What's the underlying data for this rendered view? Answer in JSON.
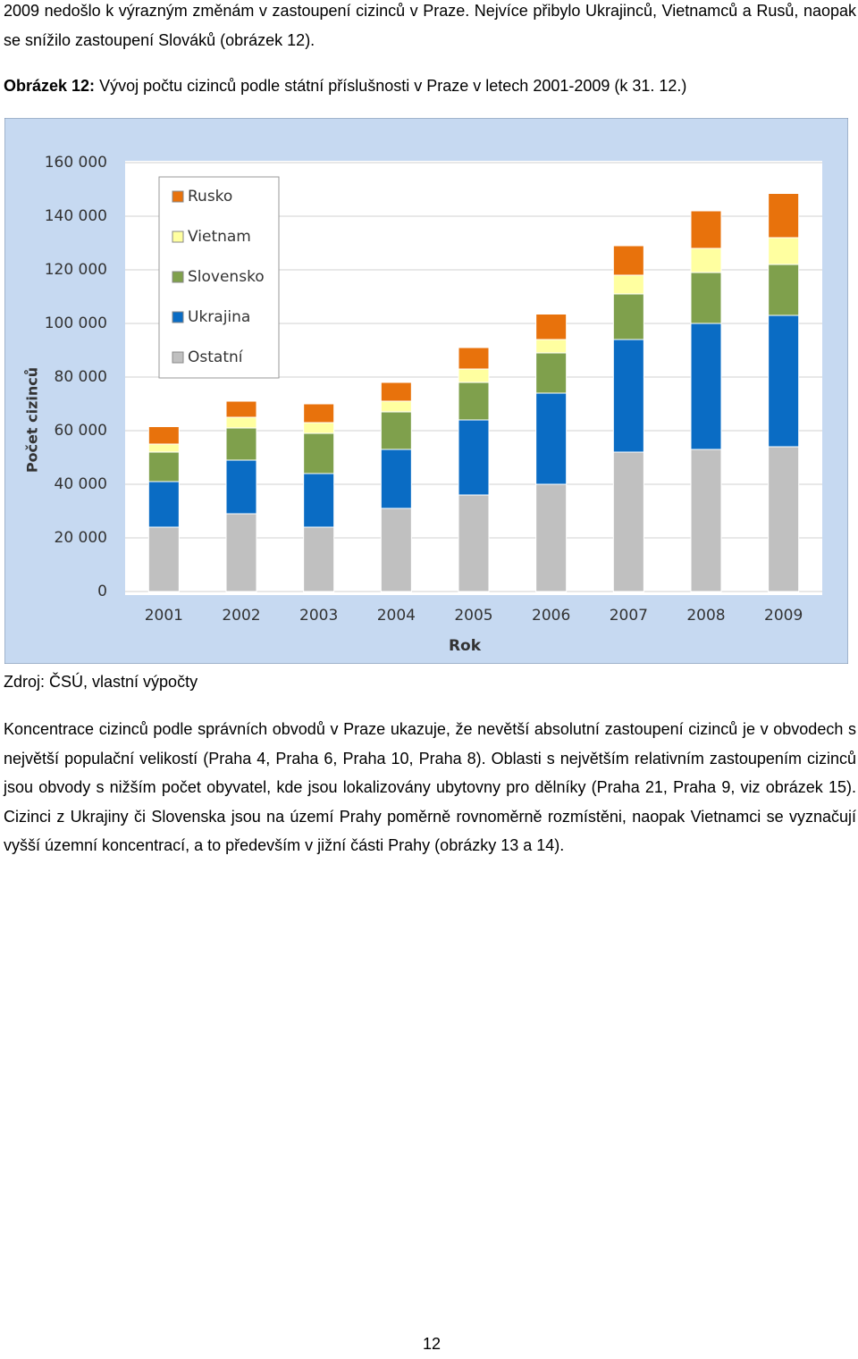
{
  "intro": "2009 nedošlo k výrazným změnám v zastoupení cizinců v Praze. Nejvíce přibylo Ukrajinců, Vietnamců a Rusů, naopak se snížilo zastoupení Slováků (obrázek 12).",
  "caption": {
    "label": "Obrázek 12:",
    "text": "Vývoj počtu cizinců podle státní příslušnosti v Praze v letech 2001-2009 (k 31. 12.)"
  },
  "chart_data": {
    "type": "stacked_bar",
    "xlabel": "Rok",
    "ylabel": "Počet cizinců",
    "categories": [
      "2001",
      "2002",
      "2003",
      "2004",
      "2005",
      "2006",
      "2007",
      "2008",
      "2009"
    ],
    "series": [
      {
        "name": "Ostatní",
        "color": "#c0c0c0",
        "values": [
          24000,
          29000,
          24000,
          31000,
          36000,
          40000,
          52000,
          53000,
          54000
        ]
      },
      {
        "name": "Ukrajina",
        "color": "#0a6cc4",
        "values": [
          17000,
          20000,
          20000,
          22000,
          28000,
          34000,
          42000,
          47000,
          49000
        ]
      },
      {
        "name": "Slovensko",
        "color": "#7fa04c",
        "values": [
          11000,
          12000,
          15000,
          14000,
          14000,
          15000,
          17000,
          19000,
          19000
        ]
      },
      {
        "name": "Vietnam",
        "color": "#ffffa0",
        "values": [
          3000,
          4000,
          4000,
          4000,
          5000,
          5000,
          7000,
          9000,
          10000
        ]
      },
      {
        "name": "Rusko",
        "color": "#e8720c",
        "values": [
          6500,
          6000,
          7000,
          7000,
          8000,
          9500,
          11000,
          14000,
          16500
        ]
      }
    ],
    "ylim": [
      0,
      160000
    ],
    "yticks": [
      0,
      {
        "value": 20000,
        "label": "20 000"
      },
      {
        "value": 40000,
        "label": "40 000"
      },
      {
        "value": 60000,
        "label": "60 000"
      },
      {
        "value": 80000,
        "label": "80 000"
      },
      {
        "value": 100000,
        "label": "100 000"
      },
      {
        "value": 120000,
        "label": "120 000"
      },
      {
        "value": 140000,
        "label": "140 000"
      },
      {
        "value": 160000,
        "label": "160 000"
      }
    ],
    "grid": true,
    "legend": "upper left"
  },
  "source": "Zdroj: ČSÚ, vlastní výpočty",
  "body": "Koncentrace cizinců podle správních obvodů v Praze ukazuje, že nevětší absolutní zastoupení cizinců je v obvodech s největší populační velikostí (Praha 4, Praha 6, Praha 10, Praha 8). Oblasti s největším relativním zastoupením cizinců jsou obvody s nižším počet obyvatel, kde jsou lokalizovány ubytovny pro dělníky (Praha 21, Praha 9, viz obrázek 15). Cizinci z Ukrajiny či Slovenska jsou na území Prahy poměrně rovnoměrně rozmístěni, naopak Vietnamci se vyznačují vyšší územní koncentrací, a to především v jižní části Prahy (obrázky 13 a 14).",
  "page_number": "12"
}
